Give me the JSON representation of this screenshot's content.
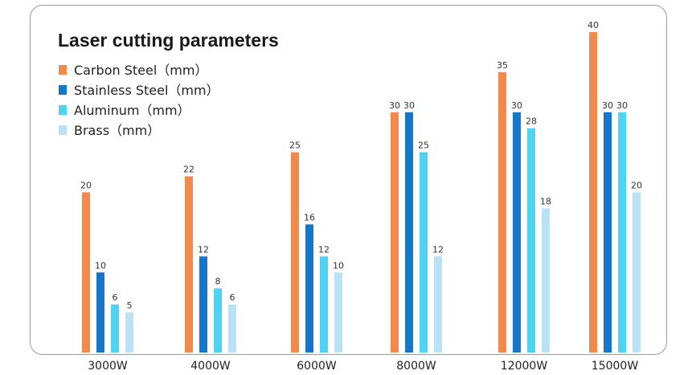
{
  "chart_data": {
    "type": "bar",
    "title": "Laser cutting parameters",
    "xlabel": "",
    "ylabel": "",
    "ylim": [
      0,
      40
    ],
    "grid": false,
    "legend_position": "top-left",
    "categories": [
      "3000W",
      "4000W",
      "6000W",
      "8000W",
      "12000W",
      "15000W"
    ],
    "series": [
      {
        "name": "Carbon Steel（mm）",
        "color": "#f28a4e",
        "values": [
          20,
          22,
          25,
          30,
          35,
          40
        ]
      },
      {
        "name": "Stainless Steel（mm）",
        "color": "#1677c8",
        "values": [
          10,
          12,
          16,
          30,
          30,
          30
        ]
      },
      {
        "name": "Aluminum（mm）",
        "color": "#4fd3f2",
        "values": [
          6,
          8,
          12,
          25,
          28,
          30
        ]
      },
      {
        "name": "Brass（mm）",
        "color": "#b9e2f6",
        "values": [
          5,
          6,
          10,
          12,
          18,
          20
        ]
      }
    ]
  }
}
